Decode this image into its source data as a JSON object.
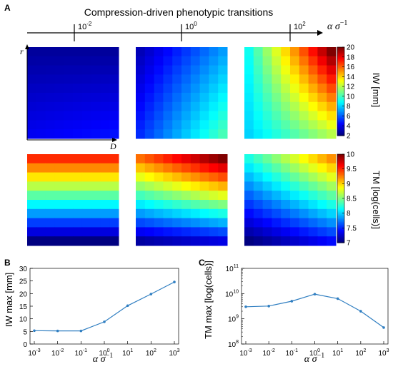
{
  "panels": {
    "a": "A",
    "b": "B",
    "c": "C"
  },
  "header": {
    "title": "Compression-driven phenotypic transitions",
    "axis_ticks": [
      {
        "base": "10",
        "exp": "-2"
      },
      {
        "base": "10",
        "exp": "0"
      },
      {
        "base": "10",
        "exp": "2"
      }
    ],
    "axis_label_alpha": "α σ",
    "axis_label_exp": "−1"
  },
  "heatmap_axes": {
    "r": "r",
    "D": "D"
  },
  "colorbars": {
    "iw": {
      "label": "IW [mm]",
      "ticks": [
        "2",
        "4",
        "6",
        "8",
        "10",
        "12",
        "14",
        "16",
        "18",
        "20"
      ],
      "min": 2,
      "max": 20
    },
    "tm": {
      "label": "TM [log(cells)]",
      "ticks": [
        "7",
        "7.5",
        "8",
        "8.5",
        "9",
        "9.5",
        "10"
      ],
      "min": 7,
      "max": 10
    }
  },
  "colors": {
    "line": "#2f7ec1",
    "axis": "#000000",
    "grid": "#d9d9d9"
  },
  "chart_data": [
    {
      "type": "line",
      "panel": "B",
      "x": [
        "10^-3",
        "10^-2",
        "10^-1",
        "10^0",
        "10^1",
        "10^2",
        "10^3"
      ],
      "x_ticks": [
        {
          "b": "10",
          "e": "-3"
        },
        {
          "b": "10",
          "e": "-2"
        },
        {
          "b": "10",
          "e": "-1"
        },
        {
          "b": "10",
          "e": "0"
        },
        {
          "b": "10",
          "e": "1"
        },
        {
          "b": "10",
          "e": "2"
        },
        {
          "b": "10",
          "e": "3"
        }
      ],
      "values": [
        5.3,
        5.2,
        5.2,
        8.8,
        15.2,
        19.8,
        24.6
      ],
      "ylabel": "IW max [mm]",
      "xlabel_alpha": "α σ",
      "xlabel_exp": "−1",
      "ylim": [
        0,
        30
      ],
      "y_ticks": [
        "0",
        "5",
        "10",
        "15",
        "20",
        "25",
        "30"
      ],
      "grid": false
    },
    {
      "type": "line",
      "panel": "C",
      "scale": "log",
      "x": [
        "10^-3",
        "10^-2",
        "10^-1",
        "10^0",
        "10^1",
        "10^2",
        "10^3"
      ],
      "x_ticks": [
        {
          "b": "10",
          "e": "-3"
        },
        {
          "b": "10",
          "e": "-2"
        },
        {
          "b": "10",
          "e": "-1"
        },
        {
          "b": "10",
          "e": "0"
        },
        {
          "b": "10",
          "e": "1"
        },
        {
          "b": "10",
          "e": "2"
        },
        {
          "b": "10",
          "e": "3"
        }
      ],
      "values": [
        3000000000.0,
        3200000000.0,
        5000000000.0,
        9500000000.0,
        6300000000.0,
        2000000000.0,
        450000000.0
      ],
      "ylabel": "TM max [log(cells)]",
      "xlabel_alpha": "α σ",
      "xlabel_exp": "−1",
      "ylim": [
        100000000.0,
        100000000000.0
      ],
      "y_ticks": [
        {
          "b": "10",
          "e": "8"
        },
        {
          "b": "10",
          "e": "9"
        },
        {
          "b": "10",
          "e": "10"
        },
        {
          "b": "10",
          "e": "11"
        }
      ],
      "grid": false
    },
    {
      "type": "heatmap",
      "panel": "A",
      "description_key": "IW",
      "conditions": [
        "10^-2",
        "10^0",
        "10^2"
      ],
      "rows": 10,
      "cols": 10,
      "value_range": [
        2,
        20
      ],
      "corner_values": [
        {
          "top_left": 2.5,
          "top_right": 2.5,
          "bottom_left": 4.0,
          "bottom_right": 4.5
        },
        {
          "top_left": 3.0,
          "top_right": 7.0,
          "bottom_left": 5.0,
          "bottom_right": 10.0
        },
        {
          "top_left": 9.0,
          "top_right": 20.0,
          "bottom_left": 8.0,
          "bottom_right": 12.0
        }
      ]
    },
    {
      "type": "heatmap",
      "panel": "A",
      "description_key": "TM",
      "conditions": [
        "10^-2",
        "10^0",
        "10^2"
      ],
      "rows": 10,
      "cols": 10,
      "value_range": [
        7,
        10
      ],
      "corner_values": [
        {
          "top_left": 9.5,
          "top_right": 9.5,
          "bottom_left": 7.0,
          "bottom_right": 7.0
        },
        {
          "top_left": 9.3,
          "top_right": 10.0,
          "bottom_left": 7.1,
          "bottom_right": 7.3
        },
        {
          "top_left": 8.2,
          "top_right": 9.2,
          "bottom_left": 7.0,
          "bottom_right": 7.4
        }
      ]
    }
  ]
}
